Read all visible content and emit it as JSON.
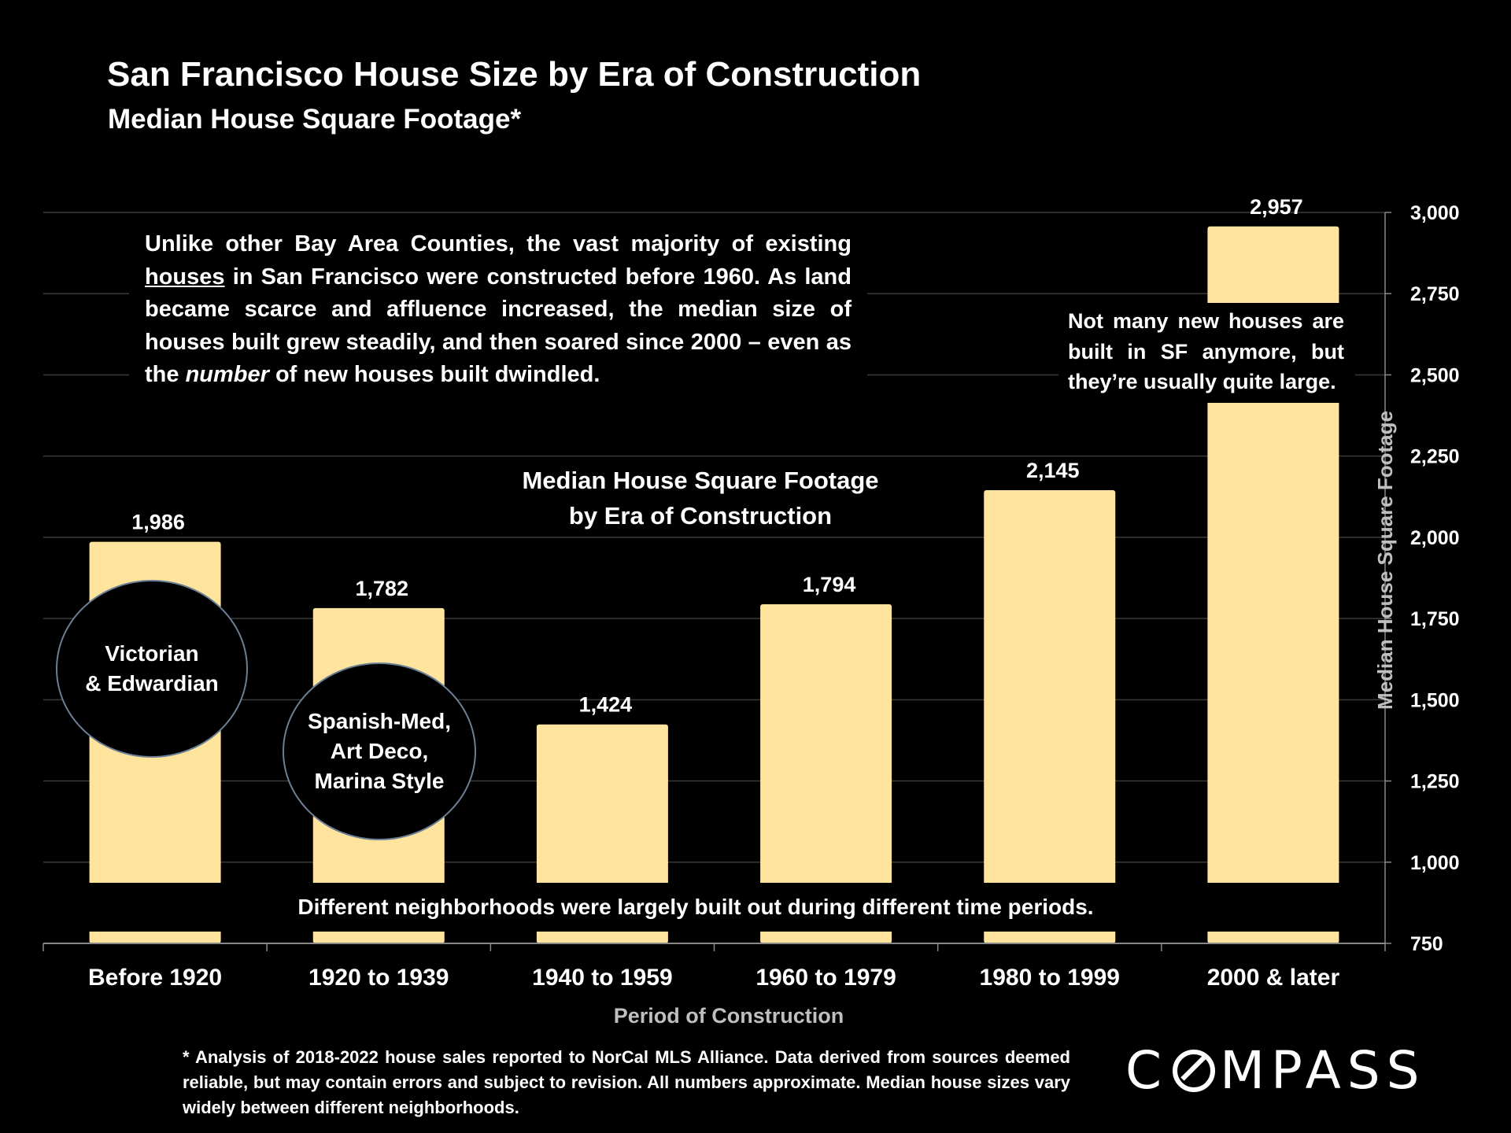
{
  "title": "San Francisco House Size by Era of Construction",
  "subtitle": "Median House Square Footage*",
  "intro": {
    "part1": "Unlike other Bay Area Counties, the vast majority of existing ",
    "underlined": "houses",
    "part2": " in San Francisco were constructed before 1960. As land became scarce and affluence increased, the median size of houses built grew steadily, and then soared since 2000 – even as the ",
    "emphasis": "number",
    "part3": " of new houses built dwindled."
  },
  "side_note": "Not many new houses are built in SF anymore, but they’re usually quite large.",
  "bottom_note": "Different neighborhoods were largely built out during different time periods.",
  "circles": {
    "victorian": [
      "Victorian",
      "& Edwardian"
    ],
    "spanish": [
      "Spanish-Med,",
      "Art Deco,",
      "Marina Style"
    ]
  },
  "footnote": "* Analysis of 2018-2022 house sales reported to NorCal MLS Alliance.  Data derived from sources deemed reliable, but may contain errors and subject to revision. All numbers approximate. Median house sizes vary widely between different neighborhoods.",
  "logo": {
    "left": "C",
    "right": "MPASS"
  },
  "colors": {
    "bar": "#ffe49e",
    "background": "#000000",
    "grid": "#3a3a3a",
    "axis_title": "#bfbfbf"
  },
  "chart_data": {
    "type": "bar",
    "title": "Median House Square Footage",
    "title_line2": "by Era of Construction",
    "categories": [
      "Before 1920",
      "1920 to 1939",
      "1940 to 1959",
      "1960 to 1979",
      "1980 to 1999",
      "2000 & later"
    ],
    "values": [
      1986,
      1782,
      1424,
      1794,
      2145,
      2957
    ],
    "value_labels": [
      "1,986",
      "1,782",
      "1,424",
      "1,794",
      "2,145",
      "2,957"
    ],
    "xlabel": "Period of Construction",
    "ylabel": "Median House Square Footage",
    "ylim": [
      750,
      3000
    ],
    "yticks": [
      750,
      1000,
      1250,
      1500,
      1750,
      2000,
      2250,
      2500,
      2750,
      3000
    ],
    "ytick_labels": [
      "750",
      "1,000",
      "1,250",
      "1,500",
      "1,750",
      "2,000",
      "2,250",
      "2,500",
      "2,750",
      "3,000"
    ],
    "grid": true,
    "y_axis_side": "right"
  }
}
